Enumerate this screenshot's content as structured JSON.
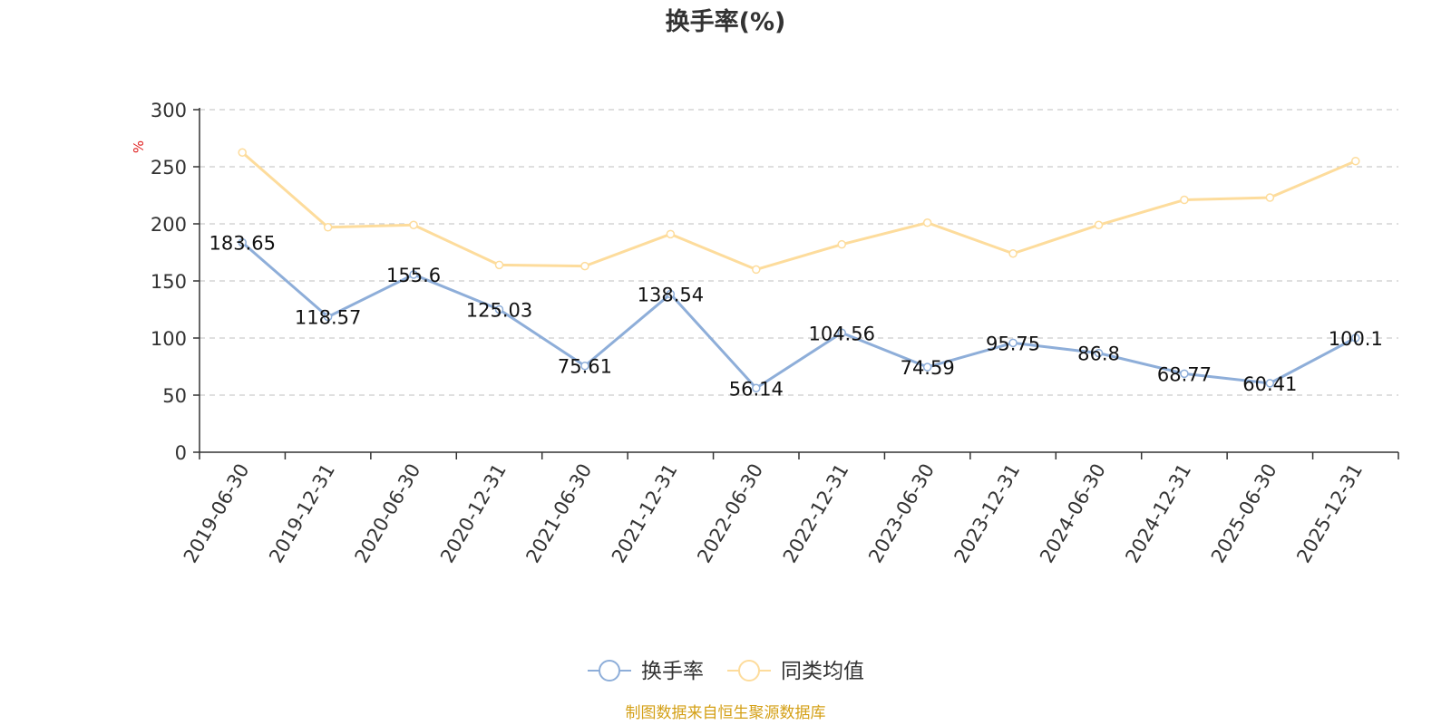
{
  "chart_data": {
    "type": "line",
    "title": "换手率(%)",
    "ylabel": "%",
    "xlabel": "",
    "ylim": [
      0,
      300
    ],
    "yticks": [
      0,
      50,
      100,
      150,
      200,
      250,
      300
    ],
    "grid": true,
    "legend_position": "bottom-center",
    "categories": [
      "2019-06-30",
      "2019-12-31",
      "2020-06-30",
      "2020-12-31",
      "2021-06-30",
      "2021-12-31",
      "2022-06-30",
      "2022-12-31",
      "2023-06-30",
      "2023-12-31",
      "2024-06-30",
      "2024-12-31",
      "2025-06-30",
      "2025-12-31"
    ],
    "series": [
      {
        "name": "换手率",
        "color": "#8eaed9",
        "values": [
          183.65,
          118.57,
          155.6,
          125.03,
          75.61,
          138.54,
          56.14,
          104.56,
          74.59,
          95.75,
          86.8,
          68.77,
          60.41,
          100.1
        ],
        "labels": [
          "183.65",
          "118.57",
          "155.6",
          "125.03",
          "75.61",
          "138.54",
          "56.14",
          "104.56",
          "74.59",
          "95.75",
          "86.8",
          "68.77",
          "60.41",
          "100.1"
        ]
      },
      {
        "name": "同类均值",
        "color": "#fddc9c",
        "values": [
          262.5,
          197,
          199,
          164,
          163,
          191,
          160,
          182,
          201,
          174,
          199,
          221,
          223,
          255
        ]
      }
    ]
  },
  "colors": {
    "axis": "#333333",
    "grid": "#cccccc",
    "unit": "#e02020",
    "source": "#d4a017"
  },
  "source_text": "制图数据来自恒生聚源数据库"
}
